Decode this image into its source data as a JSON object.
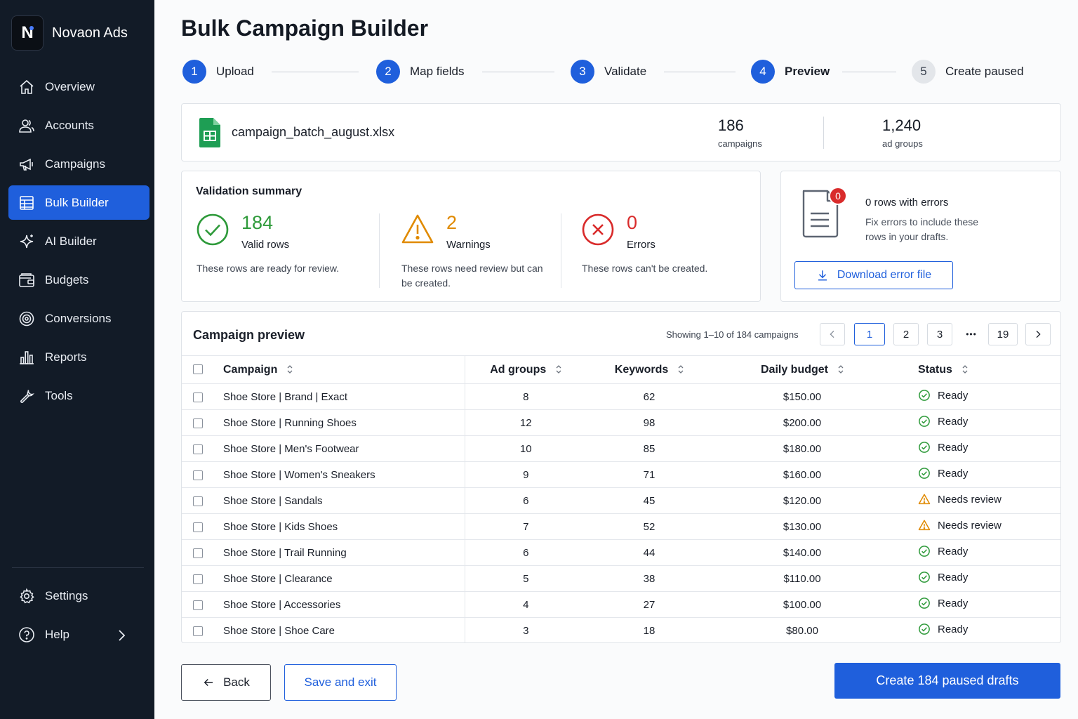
{
  "app": {
    "logo_letter": "N",
    "name": "Novaon Ads"
  },
  "sidebar": {
    "items": [
      {
        "label": "Overview",
        "icon": "home-icon"
      },
      {
        "label": "Accounts",
        "icon": "users-icon"
      },
      {
        "label": "Campaigns",
        "icon": "megaphone-icon"
      },
      {
        "label": "Bulk Builder",
        "icon": "table-icon",
        "active": true
      },
      {
        "label": "AI Builder",
        "icon": "sparkle-icon"
      },
      {
        "label": "Budgets",
        "icon": "wallet-icon"
      },
      {
        "label": "Conversions",
        "icon": "target-icon"
      },
      {
        "label": "Reports",
        "icon": "bar-chart-icon"
      },
      {
        "label": "Tools",
        "icon": "wrench-icon"
      }
    ],
    "bottom": [
      {
        "label": "Settings",
        "icon": "gear-icon"
      },
      {
        "label": "Help",
        "icon": "help-icon"
      }
    ]
  },
  "page": {
    "title": "Bulk Campaign Builder"
  },
  "steps": [
    {
      "num": "1",
      "label": "Upload",
      "state": "done"
    },
    {
      "num": "2",
      "label": "Map fields",
      "state": "done"
    },
    {
      "num": "3",
      "label": "Validate",
      "state": "done"
    },
    {
      "num": "4",
      "label": "Preview",
      "state": "current"
    },
    {
      "num": "5",
      "label": "Create paused",
      "state": "pending"
    }
  ],
  "file": {
    "name": "campaign_batch_august.xlsx",
    "campaigns_count": "186",
    "campaigns_label": "campaigns",
    "ad_groups_count": "1,240",
    "ad_groups_label": "ad groups"
  },
  "validation": {
    "title": "Validation summary",
    "valid": {
      "count": "184",
      "label": "Valid rows",
      "desc": "These rows are ready for review."
    },
    "warnings": {
      "count": "2",
      "label": "Warnings",
      "desc": "These rows need review but can be created."
    },
    "errors": {
      "count": "0",
      "label": "Errors",
      "desc": "These rows can't be created."
    }
  },
  "error_file": {
    "badge": "0",
    "title": "0 rows with errors",
    "desc": "Fix errors to include these rows in your drafts.",
    "button": "Download error file"
  },
  "preview": {
    "title": "Campaign preview",
    "showing": "Showing 1–10 of 184 campaigns",
    "pages": [
      "1",
      "2",
      "3",
      "19"
    ],
    "ellipsis": "•••",
    "current_page": "1",
    "columns": [
      "Campaign",
      "Ad groups",
      "Keywords",
      "Daily budget",
      "Status"
    ],
    "rows": [
      {
        "campaign": "Shoe Store | Brand | Exact",
        "ad_groups": "8",
        "keywords": "62",
        "budget": "$150.00",
        "status": "Ready"
      },
      {
        "campaign": "Shoe Store | Running Shoes",
        "ad_groups": "12",
        "keywords": "98",
        "budget": "$200.00",
        "status": "Ready"
      },
      {
        "campaign": "Shoe Store | Men's Footwear",
        "ad_groups": "10",
        "keywords": "85",
        "budget": "$180.00",
        "status": "Ready"
      },
      {
        "campaign": "Shoe Store | Women's Sneakers",
        "ad_groups": "9",
        "keywords": "71",
        "budget": "$160.00",
        "status": "Ready"
      },
      {
        "campaign": "Shoe Store | Sandals",
        "ad_groups": "6",
        "keywords": "45",
        "budget": "$120.00",
        "status": "Needs review"
      },
      {
        "campaign": "Shoe Store | Kids Shoes",
        "ad_groups": "7",
        "keywords": "52",
        "budget": "$130.00",
        "status": "Needs review"
      },
      {
        "campaign": "Shoe Store | Trail Running",
        "ad_groups": "6",
        "keywords": "44",
        "budget": "$140.00",
        "status": "Ready"
      },
      {
        "campaign": "Shoe Store | Clearance",
        "ad_groups": "5",
        "keywords": "38",
        "budget": "$110.00",
        "status": "Ready"
      },
      {
        "campaign": "Shoe Store | Accessories",
        "ad_groups": "4",
        "keywords": "27",
        "budget": "$100.00",
        "status": "Ready"
      },
      {
        "campaign": "Shoe Store | Shoe Care",
        "ad_groups": "3",
        "keywords": "18",
        "budget": "$80.00",
        "status": "Ready"
      }
    ]
  },
  "footer": {
    "back": "Back",
    "save": "Save and exit",
    "create": "Create 184 paused drafts"
  },
  "colors": {
    "accent": "#1f5fdc",
    "sidebar_bg": "#121b27",
    "success": "#2e9a3a",
    "warning": "#e08a00",
    "error": "#d92b2b"
  }
}
